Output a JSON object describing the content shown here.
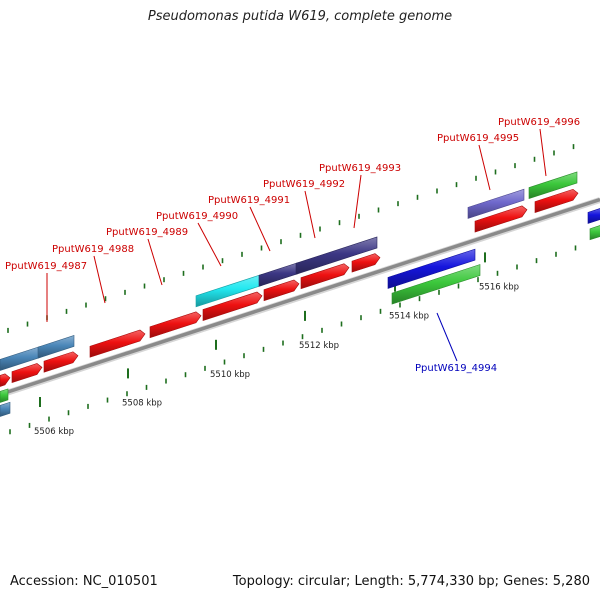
{
  "title": "Pseudomonas putida W619, complete genome",
  "footer": {
    "accession": "Accession: NC_010501",
    "summary": "Topology: circular; Length: 5,774,330 bp; Genes: 5,280"
  },
  "colors": {
    "backbone": "#8a8a8a",
    "tick": "#1e6e1e",
    "red": "#ee1111",
    "steel": "#4a86b8",
    "cyan": "#22e8f0",
    "indigo": "#3c3784",
    "violet": "#6f68cc",
    "green": "#3cc83c",
    "blue": "#1515dd",
    "label_fwd": "#cc0000",
    "label_rev": "#0000bb"
  },
  "kbp_labels": [
    "5506 kbp",
    "5508 kbp",
    "5510 kbp",
    "5512 kbp",
    "5514 kbp",
    "5516 kbp"
  ],
  "gene_labels": [
    "PputW619_4987",
    "PputW619_4988",
    "PputW619_4989",
    "PputW619_4990",
    "PputW619_4991",
    "PputW619_4992",
    "PputW619_4993",
    "PputW619_4994",
    "PputW619_4995",
    "PputW619_4996"
  ]
}
